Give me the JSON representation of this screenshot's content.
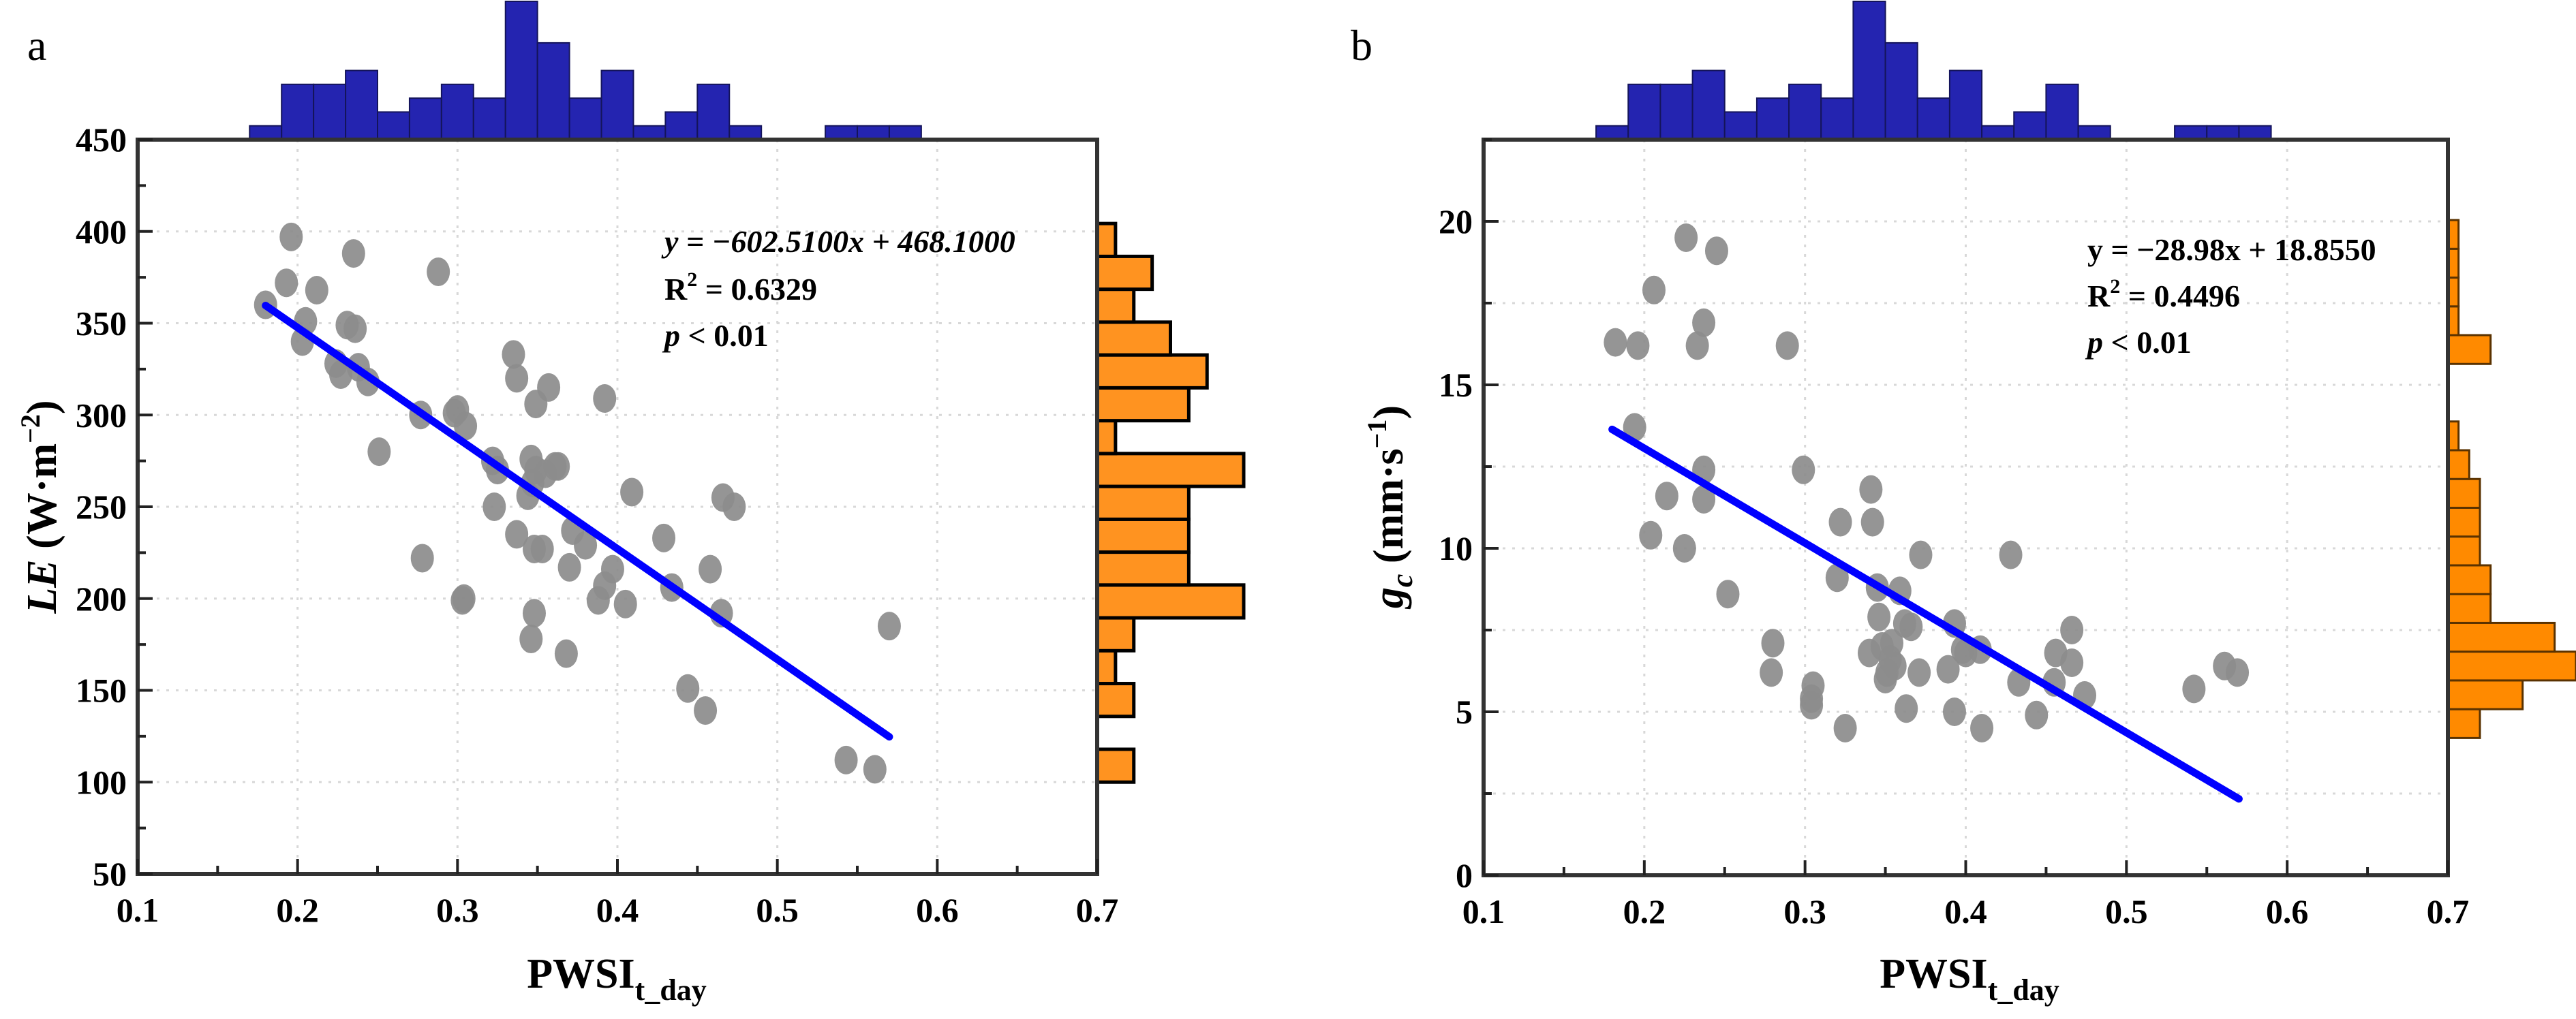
{
  "chart_data": [
    {
      "panel_label": "a",
      "type": "scatter",
      "xlabel": {
        "main": "PWSI",
        "sub": "t_day"
      },
      "ylabel": {
        "main": "LE",
        "unit_pre": " (W·m",
        "unit_sup": "−2",
        "unit_post": ")"
      },
      "xlim": [
        0.1,
        0.7
      ],
      "ylim": [
        50,
        450
      ],
      "x_ticks": [
        "0.1",
        "0.2",
        "0.3",
        "0.4",
        "0.5",
        "0.6",
        "0.7"
      ],
      "x_tick_values": [
        0.1,
        0.2,
        0.3,
        0.4,
        0.5,
        0.6,
        0.7
      ],
      "y_ticks": [
        "50",
        "100",
        "150",
        "200",
        "250",
        "300",
        "350",
        "400",
        "450"
      ],
      "y_tick_values": [
        50,
        100,
        150,
        200,
        250,
        300,
        350,
        400,
        450
      ],
      "grid": true,
      "point_color": "#8c8c8c",
      "fit_color": "#0000ff",
      "annotation": {
        "equation": "y = −602.5100x + 468.1000",
        "r2_label": "R",
        "r2_sup": "2",
        "r2_value": " = 0.6329",
        "p_label": "p",
        "p_value": " < 0.01"
      },
      "fit": {
        "slope": -602.51,
        "intercept": 468.1,
        "x_range": [
          0.18,
          0.57
        ]
      },
      "points": [
        [
          0.196,
          397
        ],
        [
          0.193,
          372
        ],
        [
          0.212,
          368
        ],
        [
          0.235,
          388
        ],
        [
          0.288,
          378
        ],
        [
          0.18,
          360
        ],
        [
          0.205,
          351
        ],
        [
          0.203,
          340
        ],
        [
          0.231,
          349
        ],
        [
          0.236,
          347
        ],
        [
          0.224,
          328
        ],
        [
          0.238,
          326
        ],
        [
          0.244,
          318
        ],
        [
          0.227,
          322
        ],
        [
          0.251,
          280
        ],
        [
          0.277,
          300
        ],
        [
          0.3,
          303
        ],
        [
          0.305,
          294
        ],
        [
          0.335,
          333
        ],
        [
          0.337,
          320
        ],
        [
          0.357,
          315
        ],
        [
          0.349,
          306
        ],
        [
          0.392,
          309
        ],
        [
          0.322,
          275
        ],
        [
          0.325,
          270
        ],
        [
          0.346,
          276
        ],
        [
          0.349,
          270
        ],
        [
          0.361,
          272
        ],
        [
          0.363,
          272
        ],
        [
          0.323,
          250
        ],
        [
          0.344,
          256
        ],
        [
          0.409,
          258
        ],
        [
          0.466,
          255
        ],
        [
          0.473,
          250
        ],
        [
          0.337,
          235
        ],
        [
          0.348,
          227
        ],
        [
          0.353,
          227
        ],
        [
          0.372,
          237
        ],
        [
          0.429,
          233
        ],
        [
          0.278,
          222
        ],
        [
          0.37,
          217
        ],
        [
          0.397,
          216
        ],
        [
          0.458,
          216
        ],
        [
          0.304,
          200
        ],
        [
          0.303,
          199
        ],
        [
          0.392,
          207
        ],
        [
          0.388,
          199
        ],
        [
          0.405,
          197
        ],
        [
          0.434,
          206
        ],
        [
          0.465,
          192
        ],
        [
          0.348,
          192
        ],
        [
          0.346,
          178
        ],
        [
          0.368,
          170
        ],
        [
          0.57,
          185
        ],
        [
          0.444,
          151
        ],
        [
          0.455,
          139
        ],
        [
          0.543,
          112
        ],
        [
          0.561,
          107
        ],
        [
          0.298,
          301
        ],
        [
          0.38,
          229
        ],
        [
          0.347,
          263
        ],
        [
          0.355,
          268
        ]
      ],
      "top_histogram": {
        "color": "#2424b0",
        "bin_start": 0.17,
        "bin_width": 0.02,
        "counts": [
          1,
          4,
          4,
          5,
          2,
          3,
          4,
          3,
          10,
          7,
          3,
          5,
          1,
          2,
          4,
          1,
          0,
          0,
          1,
          1,
          1
        ]
      },
      "right_histogram": {
        "color": "#ff9320",
        "bin_start": 100,
        "bin_width": 17.9,
        "counts": [
          2,
          0,
          2,
          1,
          2,
          8,
          5,
          5,
          5,
          8,
          1,
          5,
          6,
          4,
          2,
          3,
          1
        ]
      }
    },
    {
      "panel_label": "b",
      "type": "scatter",
      "xlabel": {
        "main": "PWSI",
        "sub": "t_day"
      },
      "ylabel": {
        "main": "g",
        "main_sub": "c",
        "unit_pre": " (mm·s",
        "unit_sup": "−1",
        "unit_post": ")"
      },
      "xlim": [
        0.1,
        0.7
      ],
      "ylim": [
        0,
        22.5
      ],
      "x_ticks": [
        "0.1",
        "0.2",
        "0.3",
        "0.4",
        "0.5",
        "0.6",
        "0.7"
      ],
      "x_tick_values": [
        0.1,
        0.2,
        0.3,
        0.4,
        0.5,
        0.6,
        0.7
      ],
      "y_ticks": [
        "0",
        "5",
        "10",
        "15",
        "20"
      ],
      "y_tick_values": [
        0,
        5,
        10,
        15,
        20
      ],
      "grid": true,
      "point_color": "#8c8c8c",
      "fit_color": "#0000ff",
      "annotation": {
        "equation": "y = −28.98x + 18.8550",
        "r2_label": "R",
        "r2_sup": "2",
        "r2_value": " = 0.4496",
        "p_label": "p",
        "p_value": " < 0.01"
      },
      "fit": {
        "slope": -28.98,
        "intercept": 18.855,
        "x_range": [
          0.18,
          0.57
        ]
      },
      "points": [
        [
          0.226,
          19.5
        ],
        [
          0.245,
          19.1
        ],
        [
          0.206,
          17.9
        ],
        [
          0.237,
          16.9
        ],
        [
          0.182,
          16.3
        ],
        [
          0.196,
          16.2
        ],
        [
          0.233,
          16.2
        ],
        [
          0.289,
          16.2
        ],
        [
          0.194,
          13.7
        ],
        [
          0.237,
          12.4
        ],
        [
          0.214,
          11.6
        ],
        [
          0.237,
          11.5
        ],
        [
          0.299,
          12.4
        ],
        [
          0.341,
          11.8
        ],
        [
          0.322,
          10.8
        ],
        [
          0.342,
          10.8
        ],
        [
          0.204,
          10.4
        ],
        [
          0.225,
          10.0
        ],
        [
          0.372,
          9.8
        ],
        [
          0.428,
          9.8
        ],
        [
          0.32,
          9.1
        ],
        [
          0.345,
          8.8
        ],
        [
          0.359,
          8.7
        ],
        [
          0.252,
          8.6
        ],
        [
          0.346,
          7.9
        ],
        [
          0.362,
          7.7
        ],
        [
          0.366,
          7.6
        ],
        [
          0.393,
          7.7
        ],
        [
          0.398,
          6.9
        ],
        [
          0.409,
          6.9
        ],
        [
          0.466,
          7.5
        ],
        [
          0.28,
          7.1
        ],
        [
          0.34,
          6.8
        ],
        [
          0.348,
          7.0
        ],
        [
          0.354,
          7.1
        ],
        [
          0.353,
          6.6
        ],
        [
          0.356,
          6.4
        ],
        [
          0.351,
          6.2
        ],
        [
          0.456,
          6.8
        ],
        [
          0.466,
          6.5
        ],
        [
          0.542,
          5.7
        ],
        [
          0.561,
          6.4
        ],
        [
          0.569,
          6.2
        ],
        [
          0.279,
          6.2
        ],
        [
          0.305,
          5.8
        ],
        [
          0.304,
          5.4
        ],
        [
          0.304,
          5.2
        ],
        [
          0.371,
          6.2
        ],
        [
          0.389,
          6.3
        ],
        [
          0.433,
          5.9
        ],
        [
          0.455,
          5.9
        ],
        [
          0.474,
          5.5
        ],
        [
          0.363,
          5.1
        ],
        [
          0.393,
          5.0
        ],
        [
          0.325,
          4.5
        ],
        [
          0.41,
          4.5
        ],
        [
          0.444,
          4.9
        ],
        [
          0.35,
          6.0
        ],
        [
          0.4,
          6.8
        ]
      ],
      "top_histogram": {
        "color": "#2424b0",
        "bin_start": 0.17,
        "bin_width": 0.02,
        "counts": [
          1,
          4,
          4,
          5,
          2,
          3,
          4,
          3,
          10,
          7,
          3,
          5,
          1,
          2,
          4,
          1,
          0,
          0,
          1,
          1,
          1
        ]
      },
      "right_histogram": {
        "color": "#ff8a00",
        "bin_start": 4.2,
        "bin_width": 0.88,
        "counts": [
          3,
          7,
          12,
          10,
          4,
          4,
          3,
          3,
          3,
          2,
          1,
          0,
          0,
          4,
          1,
          1,
          1,
          1
        ]
      }
    }
  ]
}
